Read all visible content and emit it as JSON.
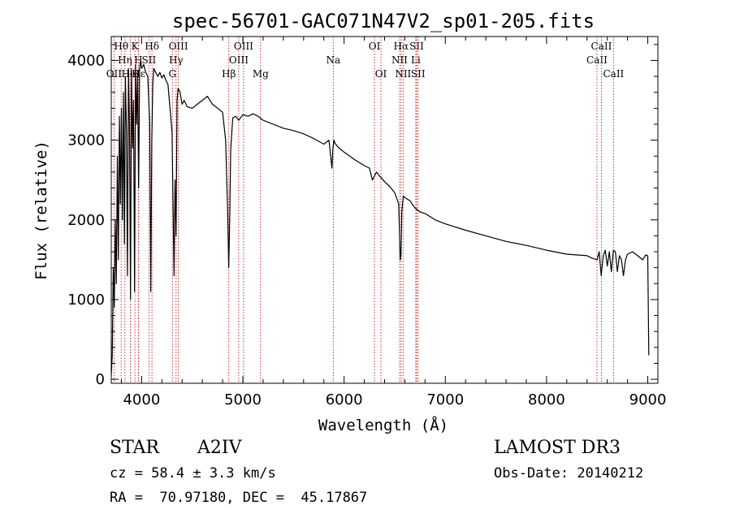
{
  "chart_data": {
    "type": "line",
    "title": "spec-56701-GAC071N47V2_sp01-205.fits",
    "xlabel": "Wavelength (Å)",
    "ylabel": "Flux (relative)",
    "xlim": [
      3700,
      9100
    ],
    "ylim": [
      -50,
      4300
    ],
    "xticks": [
      4000,
      5000,
      6000,
      7000,
      8000,
      9000
    ],
    "yticks": [
      0,
      1000,
      2000,
      3000,
      4000
    ],
    "series": [
      {
        "name": "spectrum",
        "x": [
          3700,
          3710,
          3720,
          3730,
          3740,
          3750,
          3760,
          3770,
          3780,
          3790,
          3800,
          3810,
          3820,
          3830,
          3840,
          3850,
          3860,
          3870,
          3880,
          3890,
          3900,
          3910,
          3920,
          3930,
          3940,
          3950,
          3960,
          3970,
          3980,
          3990,
          4000,
          4020,
          4040,
          4060,
          4080,
          4090,
          4100,
          4110,
          4120,
          4140,
          4160,
          4180,
          4200,
          4220,
          4240,
          4260,
          4280,
          4300,
          4320,
          4330,
          4340,
          4350,
          4360,
          4380,
          4400,
          4420,
          4450,
          4500,
          4550,
          4600,
          4650,
          4700,
          4750,
          4800,
          4830,
          4850,
          4860,
          4870,
          4880,
          4900,
          4930,
          4960,
          5000,
          5050,
          5100,
          5150,
          5200,
          5300,
          5400,
          5500,
          5600,
          5700,
          5800,
          5850,
          5880,
          5890,
          5900,
          5910,
          5950,
          6000,
          6100,
          6200,
          6250,
          6280,
          6300,
          6320,
          6350,
          6400,
          6450,
          6500,
          6540,
          6555,
          6562,
          6570,
          6585,
          6600,
          6650,
          6700,
          6750,
          6800,
          6900,
          7000,
          7200,
          7400,
          7600,
          7800,
          8000,
          8200,
          8400,
          8450,
          8500,
          8520,
          8540,
          8560,
          8580,
          8600,
          8620,
          8640,
          8660,
          8680,
          8700,
          8720,
          8740,
          8760,
          8780,
          8800,
          8850,
          8900,
          8950,
          8980,
          9000,
          9010
        ],
        "y": [
          50,
          300,
          1400,
          900,
          2000,
          1200,
          2800,
          1500,
          3300,
          2200,
          3400,
          2000,
          3600,
          1700,
          3800,
          3100,
          1300,
          3900,
          3200,
          1000,
          3900,
          2900,
          3500,
          1100,
          3950,
          3200,
          3800,
          2400,
          3900,
          4000,
          3900,
          3950,
          3850,
          3800,
          3200,
          1100,
          3000,
          3700,
          3900,
          3850,
          3800,
          3850,
          3780,
          3820,
          3750,
          3700,
          3400,
          3100,
          1300,
          2500,
          1800,
          3500,
          3650,
          3600,
          3450,
          3500,
          3420,
          3400,
          3450,
          3500,
          3550,
          3450,
          3400,
          3350,
          3000,
          2100,
          1400,
          2000,
          2900,
          3280,
          3300,
          3250,
          3320,
          3300,
          3330,
          3300,
          3250,
          3200,
          3150,
          3120,
          3080,
          3020,
          2950,
          3000,
          2650,
          2900,
          3000,
          2960,
          2900,
          2850,
          2760,
          2680,
          2650,
          2500,
          2550,
          2600,
          2550,
          2480,
          2420,
          2340,
          2200,
          1500,
          1550,
          2100,
          2300,
          2280,
          2240,
          2150,
          2100,
          2080,
          2000,
          1950,
          1870,
          1800,
          1730,
          1680,
          1620,
          1570,
          1550,
          1520,
          1500,
          1600,
          1300,
          1550,
          1620,
          1420,
          1600,
          1350,
          1620,
          1600,
          1350,
          1550,
          1500,
          1300,
          1500,
          1570,
          1600,
          1550,
          1500,
          1560,
          1550,
          300
        ]
      }
    ],
    "line_marks": [
      {
        "label": "Hθ",
        "x": 3798,
        "row": 0
      },
      {
        "label": "OII",
        "x": 3727,
        "row": 2
      },
      {
        "label": "Hη",
        "x": 3835,
        "row": 1
      },
      {
        "label": "HeI",
        "x": 3889,
        "row": 2
      },
      {
        "label": "K",
        "x": 3934,
        "row": 0
      },
      {
        "label": "H",
        "x": 3968,
        "row": 1
      },
      {
        "label": "Hε",
        "x": 3970,
        "row": 2
      },
      {
        "label": "Hδ",
        "x": 4102,
        "row": 0
      },
      {
        "label": "SII",
        "x": 4072,
        "row": 1
      },
      {
        "label": "OIII",
        "x": 4363,
        "row": 0
      },
      {
        "label": "Hγ",
        "x": 4340,
        "row": 1
      },
      {
        "label": "G",
        "x": 4304,
        "row": 2
      },
      {
        "label": "Hβ",
        "x": 4861,
        "row": 2
      },
      {
        "label": "OIII",
        "x": 4959,
        "row": 1
      },
      {
        "label": "OIII",
        "x": 5007,
        "row": 0
      },
      {
        "label": "Mg",
        "x": 5175,
        "row": 2
      },
      {
        "label": "Na",
        "x": 5893,
        "row": 1
      },
      {
        "label": "OI",
        "x": 6300,
        "row": 0
      },
      {
        "label": "OI",
        "x": 6364,
        "row": 2
      },
      {
        "label": "NII",
        "x": 6548,
        "row": 1
      },
      {
        "label": "Hα",
        "x": 6563,
        "row": 0
      },
      {
        "label": "NII",
        "x": 6583,
        "row": 2
      },
      {
        "label": "Li",
        "x": 6708,
        "row": 1
      },
      {
        "label": "SII",
        "x": 6717,
        "row": 0
      },
      {
        "label": "SII",
        "x": 6731,
        "row": 2
      },
      {
        "label": "CaII",
        "x": 8498,
        "row": 1
      },
      {
        "label": "CaII",
        "x": 8542,
        "row": 0
      },
      {
        "label": "CaII",
        "x": 8662,
        "row": 2
      }
    ]
  },
  "info": {
    "object_class": "STAR",
    "subclass": "A2IV",
    "survey": "LAMOST DR3",
    "cz": "cz = 58.4 ± 3.3 km/s",
    "obs_date": "Obs-Date: 20140212",
    "coords": "RA =  70.97180, DEC =  45.17867"
  }
}
